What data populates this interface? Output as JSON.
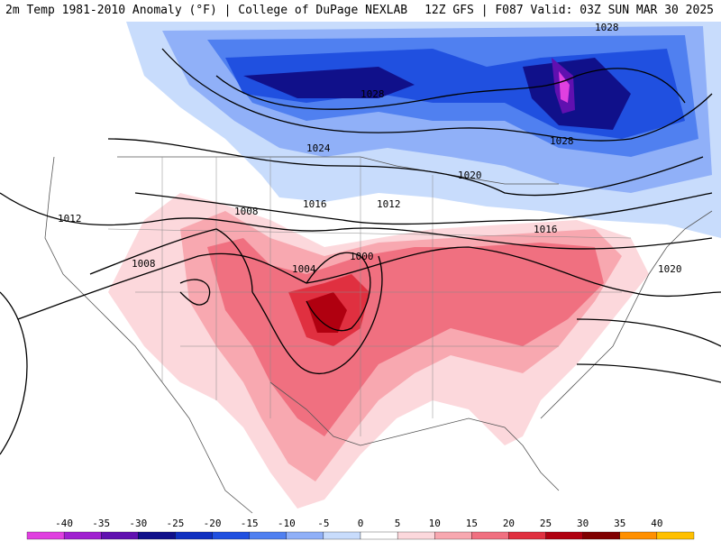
{
  "header": {
    "left_title": "2m Temp 1981-2010 Anomaly (°F) | College of DuPage NEXLAB",
    "right_title": "12Z GFS | F087 Valid: 03Z SUN MAR 30 2025"
  },
  "isobar_labels": [
    {
      "id": "iso-1028-a",
      "text": "1028"
    },
    {
      "id": "iso-1028-b",
      "text": "1028"
    },
    {
      "id": "iso-1028-c",
      "text": "1028"
    },
    {
      "id": "iso-1024",
      "text": "1024"
    },
    {
      "id": "iso-1020-a",
      "text": "1020"
    },
    {
      "id": "iso-1020-b",
      "text": "1020"
    },
    {
      "id": "iso-1016-a",
      "text": "1016"
    },
    {
      "id": "iso-1016-b",
      "text": "1016"
    },
    {
      "id": "iso-1012-a",
      "text": "1012"
    },
    {
      "id": "iso-1012-b",
      "text": "1012"
    },
    {
      "id": "iso-1008-a",
      "text": "1008"
    },
    {
      "id": "iso-1008-b",
      "text": "1008"
    },
    {
      "id": "iso-1004",
      "text": "1004"
    },
    {
      "id": "iso-1000",
      "text": "1000"
    }
  ],
  "legend": {
    "ticks": [
      "-40",
      "-35",
      "-30",
      "-25",
      "-20",
      "-15",
      "-10",
      "-5",
      "0",
      "5",
      "10",
      "15",
      "20",
      "25",
      "30",
      "35",
      "40"
    ],
    "colors": [
      "#e040e0",
      "#a020d0",
      "#6010b0",
      "#10108a",
      "#1030c0",
      "#2050e0",
      "#5080f0",
      "#90b0f8",
      "#c8dcfc",
      "#ffffff",
      "#fcd8dc",
      "#f8a8b0",
      "#f07080",
      "#e03040",
      "#b00010",
      "#800000",
      "#ff9000",
      "#ffc000"
    ]
  }
}
